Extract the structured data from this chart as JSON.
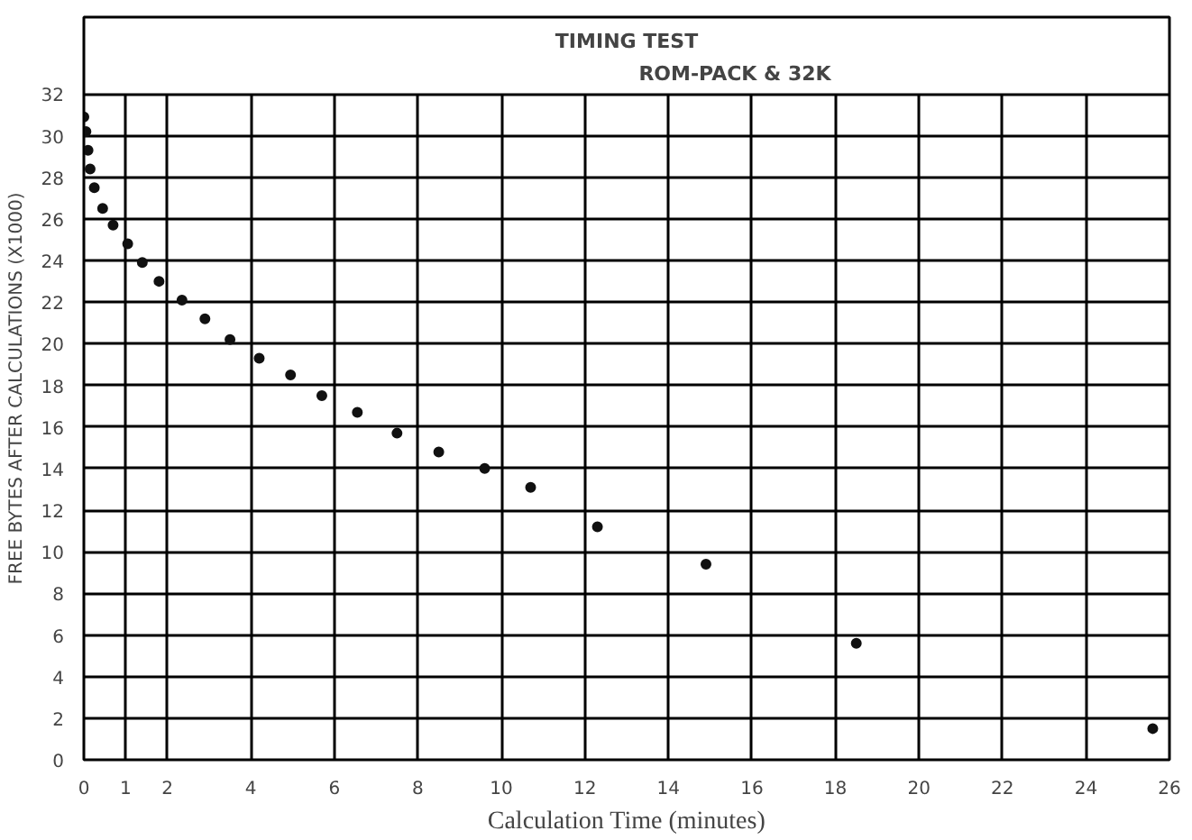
{
  "chart_data": {
    "type": "scatter",
    "title": "TIMING TEST",
    "subtitle": "ROM-PACK & 32K",
    "xlabel": "Calculation Time (minutes)",
    "ylabel": "FREE BYTES AFTER CALCULATIONS (X1000)",
    "x": [
      0,
      0.05,
      0.1,
      0.15,
      0.25,
      0.45,
      0.7,
      1.05,
      1.4,
      1.8,
      2.35,
      2.9,
      3.5,
      4.2,
      4.95,
      5.7,
      6.55,
      7.5,
      8.5,
      9.6,
      10.7,
      12.3,
      14.9,
      18.5,
      25.6
    ],
    "series": [
      {
        "color": "#111111",
        "values": [
          30.9,
          30.2,
          29.3,
          28.4,
          27.5,
          26.5,
          25.7,
          24.8,
          23.9,
          23.0,
          22.1,
          21.2,
          20.2,
          19.3,
          18.5,
          17.5,
          16.7,
          15.7,
          14.8,
          14.0,
          13.1,
          11.2,
          9.4,
          5.6,
          1.5
        ]
      }
    ],
    "xlim": [
      0,
      26
    ],
    "ylim": [
      0,
      35.7
    ],
    "xticks": [
      0,
      1,
      2,
      4,
      6,
      8,
      10,
      12,
      14,
      16,
      18,
      20,
      22,
      24,
      26
    ],
    "yticks": [
      0,
      2,
      4,
      6,
      8,
      10,
      12,
      14,
      16,
      18,
      20,
      22,
      24,
      26,
      28,
      30,
      32
    ],
    "grid": true,
    "marker": "circle"
  }
}
